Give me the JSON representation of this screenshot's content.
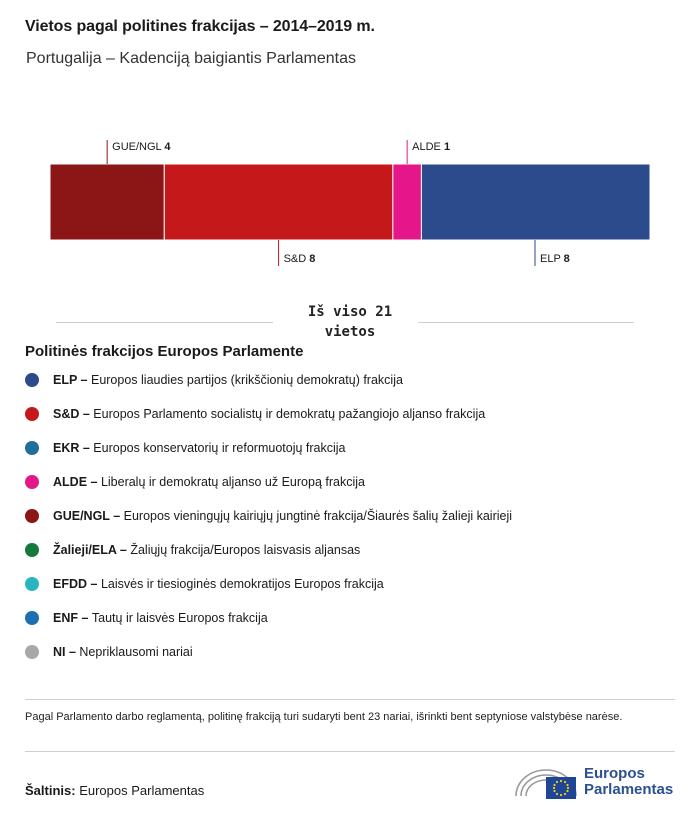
{
  "title": "Vietos pagal politines frakcijas – 2014–2019 m.",
  "subtitle": "Portugalija – Kadenciją baigiantis Parlamentas",
  "total": {
    "line1": "Iš viso 21",
    "line2": "vietos"
  },
  "chart_data": {
    "type": "bar",
    "orientation": "horizontal-stacked",
    "categories": [
      "GUE/NGL",
      "S&D",
      "ALDE",
      "ELP"
    ],
    "values": [
      4,
      8,
      1,
      8
    ],
    "colors": [
      "#8c1515",
      "#c4181b",
      "#e5168a",
      "#2c4b8c"
    ],
    "label_positions": [
      "above",
      "below",
      "above",
      "below"
    ],
    "total": 21
  },
  "legend": {
    "title": "Politinės frakcijos Europos Parlamente",
    "items": [
      {
        "abbr": "ELP –",
        "text": "Europos liaudies partijos (krikščionių demokratų) frakcija",
        "color": "#2c4b8c"
      },
      {
        "abbr": "S&D –",
        "text": "Europos Parlamento socialistų ir demokratų pažangiojo aljanso frakcija",
        "color": "#c4181b"
      },
      {
        "abbr": "EKR –",
        "text": "Europos konservatorių ir reformuotojų frakcija",
        "color": "#1f6f9e"
      },
      {
        "abbr": "ALDE –",
        "text": "Liberalų ir demokratų aljanso už Europą frakcija",
        "color": "#e5168a"
      },
      {
        "abbr": "GUE/NGL –",
        "text": "Europos vieningųjų kairiųjų jungtinė frakcija/Šiaurės šalių žalieji kairieji",
        "color": "#8c1515"
      },
      {
        "abbr": "Žalieji/ELA –",
        "text": "Žaliųjų frakcija/Europos laisvasis aljansas",
        "color": "#137a3c"
      },
      {
        "abbr": "EFDD –",
        "text": "Laisvės ir tiesioginės demokratijos Europos frakcija",
        "color": "#2bb5c0"
      },
      {
        "abbr": "ENF –",
        "text": "Tautų ir laisvės Europos frakcija",
        "color": "#1b6fb0"
      },
      {
        "abbr": "NI –",
        "text": "Nepriklausomi nariai",
        "color": "#a8a8a8"
      }
    ]
  },
  "note": "Pagal Parlamento darbo reglamentą, politinę frakciją turi sudaryti bent 23 nariai, išrinkti bent septyniose valstybėse narėse.",
  "source": {
    "label": "Šaltinis:",
    "value": "Europos Parlamentas"
  },
  "logo": {
    "line1": "Europos",
    "line2": "Parlamentas",
    "color": "#2c5090"
  }
}
